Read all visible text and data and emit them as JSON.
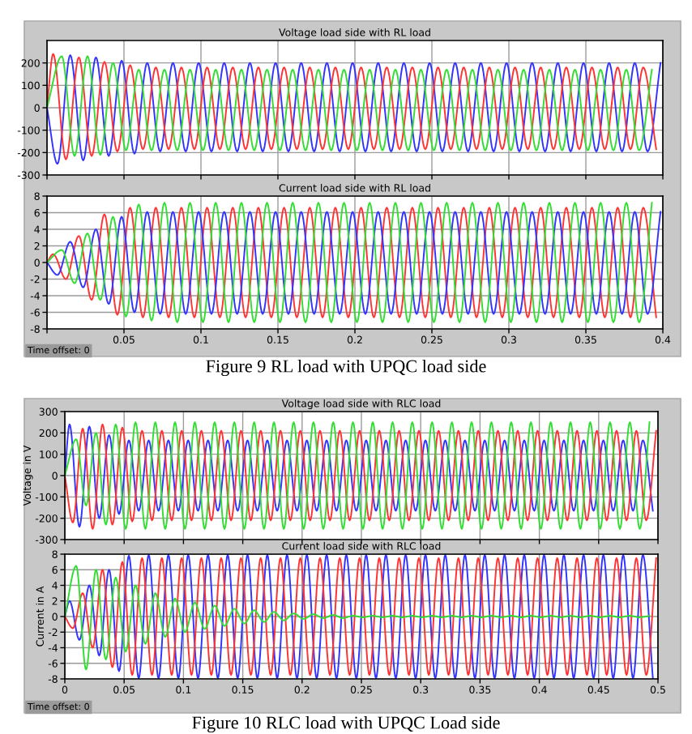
{
  "chart_data": [
    {
      "type": "line",
      "title": "Voltage load side with RL load",
      "xlim": [
        0,
        0.4
      ],
      "ylim": [
        -300,
        300
      ],
      "xticks": [
        0,
        0.05,
        0.1,
        0.15,
        0.2,
        0.25,
        0.3,
        0.35,
        0.4
      ],
      "yticks": [
        -300,
        -200,
        -100,
        0,
        100,
        200
      ],
      "tick_labels": "y",
      "grid": true,
      "legend": false,
      "marker": "none",
      "line_style": "solid",
      "series": [
        {
          "color": "#3333ff",
          "x": [
            0,
            0.0068,
            0.0151,
            0.0235,
            0.0318,
            0.0401,
            0.0485,
            0.0568,
            0.0651,
            0.0735,
            0.0818,
            0.0901,
            0.0985,
            0.1068,
            0.1151,
            0.1235,
            0.1318,
            0.1401,
            0.1485,
            0.1568,
            0.1651,
            0.1735,
            0.1818,
            0.1901,
            0.1985,
            0.2068,
            0.2151,
            0.2235,
            0.2318,
            0.2401,
            0.2485,
            0.2568,
            0.2651,
            0.2735,
            0.2818,
            0.2901,
            0.2985,
            0.3068,
            0.3151,
            0.3235,
            0.3318,
            0.3401,
            0.3485,
            0.3568,
            0.3651,
            0.3735,
            0.3818,
            0.3901,
            0.3985
          ],
          "values": [
            0,
            -250,
            235,
            -235,
            225,
            -215,
            210,
            -205,
            200,
            -195,
            200,
            -195,
            200,
            -195,
            200,
            -195,
            200,
            -195,
            200,
            -195,
            200,
            -195,
            200,
            -195,
            200,
            -195,
            200,
            -195,
            200,
            -195,
            200,
            -195,
            200,
            -195,
            200,
            -195,
            200,
            -195,
            200,
            -195,
            200,
            -195,
            200,
            -195,
            200,
            -195,
            200,
            -195,
            200
          ]
        },
        {
          "color": "#ff3333",
          "x": [
            0,
            0.004,
            0.0123,
            0.0207,
            0.029,
            0.0373,
            0.0457,
            0.054,
            0.0623,
            0.0707,
            0.079,
            0.0873,
            0.0957,
            0.104,
            0.1123,
            0.1207,
            0.129,
            0.1373,
            0.1457,
            0.154,
            0.1623,
            0.1707,
            0.179,
            0.1873,
            0.1957,
            0.204,
            0.2123,
            0.2207,
            0.229,
            0.2373,
            0.2457,
            0.254,
            0.2623,
            0.2707,
            0.279,
            0.2873,
            0.2957,
            0.304,
            0.3123,
            0.3207,
            0.329,
            0.3373,
            0.3457,
            0.354,
            0.3623,
            0.3707,
            0.379,
            0.3873,
            0.3957
          ],
          "values": [
            0,
            240,
            -230,
            225,
            -215,
            205,
            -195,
            190,
            -185,
            180,
            -185,
            180,
            -185,
            180,
            -185,
            180,
            -185,
            180,
            -185,
            180,
            -185,
            180,
            -185,
            180,
            -185,
            180,
            -185,
            180,
            -185,
            180,
            -185,
            180,
            -185,
            180,
            -185,
            180,
            -185,
            180,
            -185,
            180,
            -185,
            180,
            -185,
            180,
            -185,
            180,
            -185,
            180,
            -185
          ]
        },
        {
          "color": "#33dd33",
          "x": [
            0,
            0.0096,
            0.0179,
            0.0263,
            0.0346,
            0.0429,
            0.0513,
            0.0596,
            0.0679,
            0.0763,
            0.0846,
            0.0929,
            0.1013,
            0.1096,
            0.1179,
            0.1263,
            0.1346,
            0.1429,
            0.1513,
            0.1596,
            0.1679,
            0.1763,
            0.1846,
            0.1929,
            0.2013,
            0.2096,
            0.2179,
            0.2263,
            0.2346,
            0.2429,
            0.2513,
            0.2596,
            0.2679,
            0.2763,
            0.2846,
            0.2929,
            0.3013,
            0.3096,
            0.3179,
            0.3263,
            0.3346,
            0.3429,
            0.3513,
            0.3596,
            0.3679,
            0.3763,
            0.3846,
            0.3929
          ],
          "values": [
            0,
            230,
            -215,
            230,
            -210,
            200,
            -190,
            170,
            -190,
            170,
            -190,
            170,
            -190,
            170,
            -190,
            170,
            -190,
            170,
            -190,
            170,
            -190,
            170,
            -190,
            170,
            -190,
            170,
            -190,
            170,
            -190,
            170,
            -190,
            170,
            -190,
            170,
            -190,
            170,
            -190,
            170,
            -190,
            170,
            -190,
            170,
            -190,
            170,
            -190,
            170,
            -190,
            170
          ]
        }
      ]
    },
    {
      "type": "line",
      "title": "Current load side with RL load",
      "xlim": [
        0,
        0.4
      ],
      "ylim": [
        -8,
        8
      ],
      "xticks": [
        {
          "value": 0,
          "label": null
        },
        0.05,
        0.1,
        0.15,
        0.2,
        0.25,
        0.3,
        0.35,
        0.4
      ],
      "yticks": [
        -8,
        -6,
        -4,
        -2,
        0,
        2,
        4,
        6,
        8
      ],
      "grid": true,
      "legend": false,
      "marker": "none",
      "line_style": "solid",
      "annotations": [
        "Time offset: 0",
        "Figure 9 RL load with UPQC load side"
      ],
      "series": [
        {
          "color": "#ff3333",
          "x": [
            0,
            0.004,
            0.0123,
            0.0207,
            0.029,
            0.0373,
            0.0457,
            0.054,
            0.0623,
            0.0707,
            0.079,
            0.0873,
            0.0957,
            0.104,
            0.1123,
            0.1207,
            0.129,
            0.1373,
            0.1457,
            0.154,
            0.1623,
            0.1707,
            0.179,
            0.1873,
            0.1957,
            0.204,
            0.2123,
            0.2207,
            0.229,
            0.2373,
            0.2457,
            0.254,
            0.2623,
            0.2707,
            0.279,
            0.2873,
            0.2957,
            0.304,
            0.3123,
            0.3207,
            0.329,
            0.3373,
            0.3457,
            0.354,
            0.3623,
            0.3707,
            0.379,
            0.3873,
            0.3957
          ],
          "values": [
            0,
            1,
            -2,
            3.2,
            -4.5,
            5.8,
            -6.3,
            6.6,
            -6.6,
            6.6,
            -6.6,
            6.6,
            -6.6,
            6.6,
            -6.6,
            6.6,
            -6.6,
            6.6,
            -6.6,
            6.6,
            -6.6,
            6.6,
            -6.6,
            6.6,
            -6.6,
            6.6,
            -6.6,
            6.6,
            -6.6,
            6.6,
            -6.6,
            6.6,
            -6.6,
            6.6,
            -6.6,
            6.6,
            -6.6,
            6.6,
            -6.6,
            6.6,
            -6.6,
            6.6,
            -6.6,
            6.6,
            -6.6,
            6.6,
            -6.6,
            6.6,
            -6.6
          ]
        },
        {
          "color": "#3333ff",
          "x": [
            0,
            0.0068,
            0.0151,
            0.0235,
            0.0318,
            0.0401,
            0.0485,
            0.0568,
            0.0651,
            0.0735,
            0.0818,
            0.0901,
            0.0985,
            0.1068,
            0.1151,
            0.1235,
            0.1318,
            0.1401,
            0.1485,
            0.1568,
            0.1651,
            0.1735,
            0.1818,
            0.1901,
            0.1985,
            0.2068,
            0.2151,
            0.2235,
            0.2318,
            0.2401,
            0.2485,
            0.2568,
            0.2651,
            0.2735,
            0.2818,
            0.2901,
            0.2985,
            0.3068,
            0.3151,
            0.3235,
            0.3318,
            0.3401,
            0.3485,
            0.3568,
            0.3651,
            0.3735,
            0.3818,
            0.3901,
            0.3985
          ],
          "values": [
            0,
            -1.5,
            2.5,
            -3,
            4,
            -5,
            5.5,
            -6,
            6.1,
            -6.2,
            6.1,
            -6.2,
            6.1,
            -6.2,
            6.1,
            -6.2,
            6.1,
            -6.2,
            6.1,
            -6.2,
            6.1,
            -6.2,
            6.1,
            -6.2,
            6.1,
            -6.2,
            6.1,
            -6.2,
            6.1,
            -6.2,
            6.1,
            -6.2,
            6.1,
            -6.2,
            6.1,
            -6.2,
            6.1,
            -6.2,
            6.1,
            -6.2,
            6.1,
            -6.2,
            6.1,
            -6.2,
            6.1,
            -6.2,
            6.1,
            -6.2,
            6.1
          ]
        },
        {
          "color": "#33dd33",
          "x": [
            0,
            0.0096,
            0.0179,
            0.0263,
            0.0346,
            0.0429,
            0.0513,
            0.0596,
            0.0679,
            0.0763,
            0.0846,
            0.0929,
            0.1013,
            0.1096,
            0.1179,
            0.1263,
            0.1346,
            0.1429,
            0.1513,
            0.1596,
            0.1679,
            0.1763,
            0.1846,
            0.1929,
            0.2013,
            0.2096,
            0.2179,
            0.2263,
            0.2346,
            0.2429,
            0.2513,
            0.2596,
            0.2679,
            0.2763,
            0.2846,
            0.2929,
            0.3013,
            0.3096,
            0.3179,
            0.3263,
            0.3346,
            0.3429,
            0.3513,
            0.3596,
            0.3679,
            0.3763,
            0.3846,
            0.3929
          ],
          "values": [
            0,
            1.5,
            -2.5,
            3.5,
            -4.5,
            5.5,
            -6.5,
            7,
            -7,
            7.2,
            -7.2,
            7.2,
            -7.2,
            7.2,
            -7.2,
            7.2,
            -7.2,
            7.2,
            -7.2,
            7.2,
            -7.2,
            7.2,
            -7.2,
            7.2,
            -7.2,
            7.2,
            -7.2,
            7.2,
            -7.2,
            7.2,
            -7.2,
            7.2,
            -7.2,
            7.2,
            -7.2,
            7.2,
            -7.2,
            7.2,
            -7.2,
            7.2,
            -7.2,
            7.2,
            -7.2,
            7.2,
            -7.2,
            7.2,
            -7.2,
            7.2
          ]
        }
      ]
    },
    {
      "type": "line",
      "title": "Voltage load side with RLC load",
      "ylabel": "Voltage in V",
      "xlim": [
        0,
        0.5
      ],
      "ylim": [
        -300,
        300
      ],
      "xticks": [
        0,
        0.05,
        0.1,
        0.15,
        0.2,
        0.25,
        0.3,
        0.35,
        0.4,
        0.45,
        0.5
      ],
      "yticks": [
        -300,
        -200,
        -100,
        0,
        100,
        200,
        300
      ],
      "tick_labels": "y",
      "grid": true,
      "legend": false,
      "marker": "none",
      "line_style": "solid",
      "series": [
        {
          "color": "#3333ff",
          "x": [
            0,
            0.004,
            0.0123,
            0.0207,
            0.029,
            0.0373,
            0.0457,
            0.054,
            0.0623,
            0.0707,
            0.079,
            0.0873,
            0.0957,
            0.104,
            0.1123,
            0.1207,
            0.129,
            0.1373,
            0.1457,
            0.154,
            0.1623,
            0.1707,
            0.179,
            0.1873,
            0.1957,
            0.204,
            0.2123,
            0.2207,
            0.229,
            0.2373,
            0.2457,
            0.254,
            0.2623,
            0.2707,
            0.279,
            0.2873,
            0.2957,
            0.304,
            0.3123,
            0.3207,
            0.329,
            0.3373,
            0.3457,
            0.354,
            0.3623,
            0.3707,
            0.379,
            0.3873,
            0.3957,
            0.404,
            0.4123,
            0.4207,
            0.429,
            0.4373,
            0.4457,
            0.454,
            0.4623,
            0.4707,
            0.479,
            0.4873,
            0.4957
          ],
          "values": [
            0,
            240,
            -240,
            230,
            -200,
            190,
            -180,
            165,
            -165,
            165,
            -165,
            165,
            -165,
            165,
            -165,
            165,
            -165,
            165,
            -165,
            165,
            -165,
            165,
            -165,
            165,
            -165,
            165,
            -165,
            165,
            -165,
            165,
            -165,
            165,
            -165,
            165,
            -165,
            165,
            -165,
            165,
            -165,
            165,
            -165,
            165,
            -165,
            165,
            -165,
            165,
            -165,
            165,
            -165,
            165,
            -165,
            165,
            -165,
            165,
            -165,
            165,
            -165,
            165,
            -165,
            165,
            -165
          ]
        },
        {
          "color": "#ff3333",
          "x": [
            0,
            0.0068,
            0.0151,
            0.0235,
            0.0318,
            0.0401,
            0.0485,
            0.0568,
            0.0651,
            0.0735,
            0.0818,
            0.0901,
            0.0985,
            0.1068,
            0.1151,
            0.1235,
            0.1318,
            0.1401,
            0.1485,
            0.1568,
            0.1651,
            0.1735,
            0.1818,
            0.1901,
            0.1985,
            0.2068,
            0.2151,
            0.2235,
            0.2318,
            0.2401,
            0.2485,
            0.2568,
            0.2651,
            0.2735,
            0.2818,
            0.2901,
            0.2985,
            0.3068,
            0.3151,
            0.3235,
            0.3318,
            0.3401,
            0.3485,
            0.3568,
            0.3651,
            0.3735,
            0.3818,
            0.3901,
            0.3985,
            0.4068,
            0.4151,
            0.4235,
            0.4318,
            0.4401,
            0.4485,
            0.4568,
            0.4651,
            0.4735,
            0.4818,
            0.4901,
            0.4985
          ],
          "values": [
            0,
            -220,
            220,
            -250,
            240,
            -230,
            225,
            -215,
            210,
            -210,
            210,
            -210,
            210,
            -210,
            210,
            -210,
            210,
            -210,
            210,
            -210,
            210,
            -210,
            210,
            -210,
            210,
            -210,
            210,
            -210,
            210,
            -210,
            210,
            -210,
            210,
            -210,
            210,
            -210,
            210,
            -210,
            210,
            -210,
            210,
            -210,
            210,
            -210,
            210,
            -210,
            210,
            -210,
            210,
            -210,
            210,
            -210,
            210,
            -210,
            210,
            -210,
            210,
            -210,
            210,
            -210,
            210
          ]
        },
        {
          "color": "#33dd33",
          "x": [
            0,
            0.0096,
            0.0179,
            0.0263,
            0.0346,
            0.0429,
            0.0513,
            0.0596,
            0.0679,
            0.0763,
            0.0846,
            0.0929,
            0.1013,
            0.1096,
            0.1179,
            0.1263,
            0.1346,
            0.1429,
            0.1513,
            0.1596,
            0.1679,
            0.1763,
            0.1846,
            0.1929,
            0.2013,
            0.2096,
            0.2179,
            0.2263,
            0.2346,
            0.2429,
            0.2513,
            0.2596,
            0.2679,
            0.2763,
            0.2846,
            0.2929,
            0.3013,
            0.3096,
            0.3179,
            0.3263,
            0.3346,
            0.3429,
            0.3513,
            0.3596,
            0.3679,
            0.3763,
            0.3846,
            0.3929,
            0.4013,
            0.4096,
            0.4179,
            0.4263,
            0.4346,
            0.4429,
            0.4513,
            0.4596,
            0.4679,
            0.4763,
            0.4846,
            0.4929
          ],
          "values": [
            0,
            170,
            -140,
            200,
            -230,
            240,
            -250,
            250,
            -250,
            250,
            -250,
            250,
            -250,
            250,
            -250,
            250,
            -250,
            250,
            -250,
            250,
            -250,
            250,
            -250,
            250,
            -250,
            250,
            -250,
            250,
            -250,
            250,
            -250,
            250,
            -250,
            250,
            -250,
            250,
            -250,
            250,
            -250,
            250,
            -250,
            250,
            -250,
            250,
            -250,
            250,
            -250,
            250,
            -250,
            250,
            -250,
            250,
            -250,
            250,
            -250,
            250,
            -250,
            250,
            -250,
            250
          ]
        }
      ]
    },
    {
      "type": "line",
      "title": "Current load side with RLC load",
      "ylabel": "Current in A",
      "xlim": [
        0,
        0.5
      ],
      "ylim": [
        -8,
        8
      ],
      "xticks": [
        0,
        0.05,
        0.1,
        0.15,
        0.2,
        0.25,
        0.3,
        0.35,
        0.4,
        0.45,
        0.5
      ],
      "yticks": [
        -8,
        -6,
        -4,
        -2,
        0,
        2,
        4,
        6,
        8
      ],
      "grid": true,
      "legend": false,
      "marker": "none",
      "line_style": "solid",
      "annotations": [
        "Time offset: 0",
        "Figure 10 RLC load with UPQC Load side"
      ],
      "series": [
        {
          "color": "#3333ff",
          "x": [
            0,
            0.004,
            0.0123,
            0.0207,
            0.029,
            0.0373,
            0.0457,
            0.054,
            0.0623,
            0.0707,
            0.079,
            0.0873,
            0.0957,
            0.104,
            0.1123,
            0.1207,
            0.129,
            0.1373,
            0.1457,
            0.154,
            0.1623,
            0.1707,
            0.179,
            0.1873,
            0.1957,
            0.204,
            0.2123,
            0.2207,
            0.229,
            0.2373,
            0.2457,
            0.254,
            0.2623,
            0.2707,
            0.279,
            0.2873,
            0.2957,
            0.304,
            0.3123,
            0.3207,
            0.329,
            0.3373,
            0.3457,
            0.354,
            0.3623,
            0.3707,
            0.379,
            0.3873,
            0.3957,
            0.404,
            0.4123,
            0.4207,
            0.429,
            0.4373,
            0.4457,
            0.454,
            0.4623,
            0.4707,
            0.479,
            0.4873,
            0.4957
          ],
          "values": [
            0,
            2,
            -3,
            4,
            -5,
            6,
            -7,
            7.8,
            -7.9,
            7.9,
            -7.9,
            7.9,
            -7.9,
            7.9,
            -7.9,
            7.9,
            -7.9,
            7.9,
            -7.9,
            7.9,
            -7.9,
            7.9,
            -7.9,
            7.9,
            -7.9,
            7.9,
            -7.9,
            7.9,
            -7.9,
            7.9,
            -7.9,
            7.9,
            -7.9,
            7.9,
            -7.9,
            7.9,
            -7.9,
            7.9,
            -7.9,
            7.9,
            -7.9,
            7.9,
            -7.9,
            7.9,
            -7.9,
            7.9,
            -7.9,
            7.9,
            -7.9,
            7.9,
            -7.9,
            7.9,
            -7.9,
            7.9,
            -7.9,
            7.9,
            -7.9,
            7.9,
            -7.9,
            7.9,
            -7.9
          ]
        },
        {
          "color": "#ff3333",
          "x": [
            0,
            0.0068,
            0.0151,
            0.0235,
            0.0318,
            0.0401,
            0.0485,
            0.0568,
            0.0651,
            0.0735,
            0.0818,
            0.0901,
            0.0985,
            0.1068,
            0.1151,
            0.1235,
            0.1318,
            0.1401,
            0.1485,
            0.1568,
            0.1651,
            0.1735,
            0.1818,
            0.1901,
            0.1985,
            0.2068,
            0.2151,
            0.2235,
            0.2318,
            0.2401,
            0.2485,
            0.2568,
            0.2651,
            0.2735,
            0.2818,
            0.2901,
            0.2985,
            0.3068,
            0.3151,
            0.3235,
            0.3318,
            0.3401,
            0.3485,
            0.3568,
            0.3651,
            0.3735,
            0.3818,
            0.3901,
            0.3985,
            0.4068,
            0.4151,
            0.4235,
            0.4318,
            0.4401,
            0.4485,
            0.4568,
            0.4651,
            0.4735,
            0.4818,
            0.4901,
            0.4985
          ],
          "values": [
            0,
            -1.5,
            3,
            -4,
            6,
            -6.5,
            7,
            -7.5,
            7.5,
            -7.5,
            7.5,
            -7.5,
            7.5,
            -7.5,
            7.5,
            -7.5,
            7.5,
            -7.5,
            7.5,
            -7.5,
            7.5,
            -7.5,
            7.5,
            -7.5,
            7.5,
            -7.5,
            7.5,
            -7.5,
            7.5,
            -7.5,
            7.5,
            -7.5,
            7.5,
            -7.5,
            7.5,
            -7.5,
            7.5,
            -7.5,
            7.5,
            -7.5,
            7.5,
            -7.5,
            7.5,
            -7.5,
            7.5,
            -7.5,
            7.5,
            -7.5,
            7.5,
            -7.5,
            7.5,
            -7.5,
            7.5,
            -7.5,
            7.5,
            -7.5,
            7.5,
            -7.5,
            7.5,
            -7.5,
            7.5
          ]
        },
        {
          "color": "#33dd33",
          "x": [
            0,
            0.0096,
            0.0179,
            0.0263,
            0.0346,
            0.0429,
            0.0513,
            0.0596,
            0.0679,
            0.0763,
            0.0846,
            0.0929,
            0.1013,
            0.1096,
            0.1179,
            0.1263,
            0.1346,
            0.1429,
            0.1513,
            0.1596,
            0.1679,
            0.1763,
            0.1846,
            0.1929,
            0.2013,
            0.2096,
            0.2179,
            0.2263,
            0.2346,
            0.2429,
            0.2513,
            0.2596,
            0.2679,
            0.2763,
            0.2846,
            0.2929,
            0.3013,
            0.3096,
            0.3179,
            0.3263,
            0.3346,
            0.3429,
            0.3513,
            0.3596,
            0.3679,
            0.3763,
            0.3846,
            0.3929,
            0.4013,
            0.4096,
            0.4179,
            0.4263,
            0.4346,
            0.4429,
            0.4513,
            0.4596,
            0.4679,
            0.4763,
            0.4846,
            0.4929
          ],
          "values": [
            0,
            6.5,
            -6.8,
            6,
            -5.5,
            5,
            -4.5,
            4,
            -3.5,
            3,
            -2.6,
            2.3,
            -2,
            1.8,
            -1.6,
            1.4,
            -1.2,
            1,
            -0.9,
            0.8,
            -0.7,
            0.6,
            -0.5,
            0.4,
            -0.3,
            0.3,
            -0.2,
            0.2,
            -0.2,
            0.1,
            -0.1,
            0.1,
            -0.1,
            0.1,
            -0.1,
            0.1,
            -0.1,
            0.1,
            -0.1,
            0.1,
            -0.1,
            0.1,
            -0.1,
            0.1,
            -0.1,
            0.1,
            -0.1,
            0.1,
            -0.1,
            0.1,
            -0.1,
            0.1,
            -0.1,
            0.1,
            -0.1,
            0.1,
            -0.1,
            0.1,
            -0.1,
            0.1
          ]
        }
      ]
    }
  ]
}
